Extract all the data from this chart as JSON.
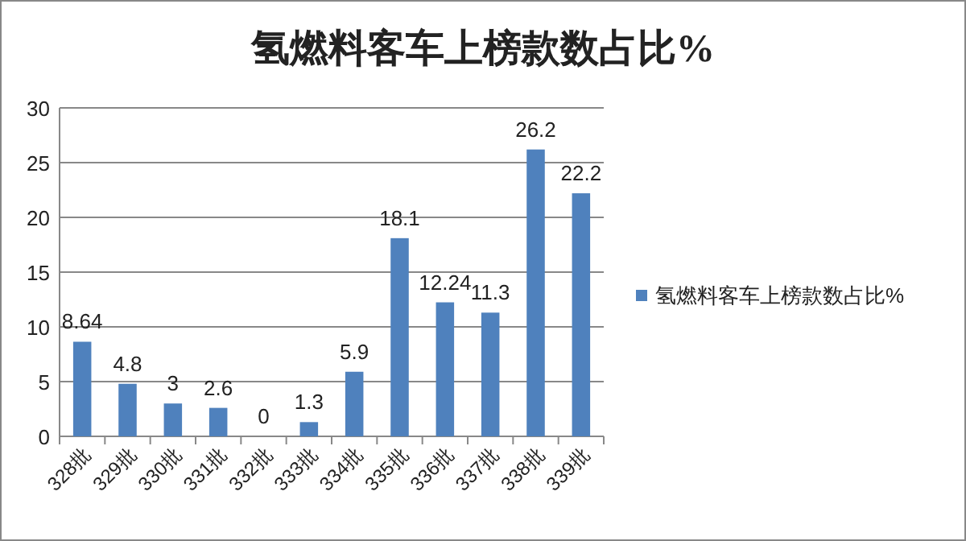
{
  "chart_data": {
    "type": "bar",
    "title": "氢燃料客车上榜款数占比%",
    "categories": [
      "328批",
      "329批",
      "330批",
      "331批",
      "332批",
      "333批",
      "334批",
      "335批",
      "336批",
      "337批",
      "338批",
      "339批"
    ],
    "series": [
      {
        "name": "氢燃料客车上榜款数占比%",
        "color": "#4f81bd",
        "values": [
          8.64,
          4.8,
          3,
          2.6,
          0,
          1.3,
          5.9,
          18.1,
          12.24,
          11.3,
          26.2,
          22.2
        ]
      }
    ],
    "ylim": [
      0,
      30
    ],
    "yticks": [
      0,
      5,
      10,
      15,
      20,
      25,
      30
    ],
    "grid": "y",
    "data_labels": true,
    "legend": "right"
  }
}
